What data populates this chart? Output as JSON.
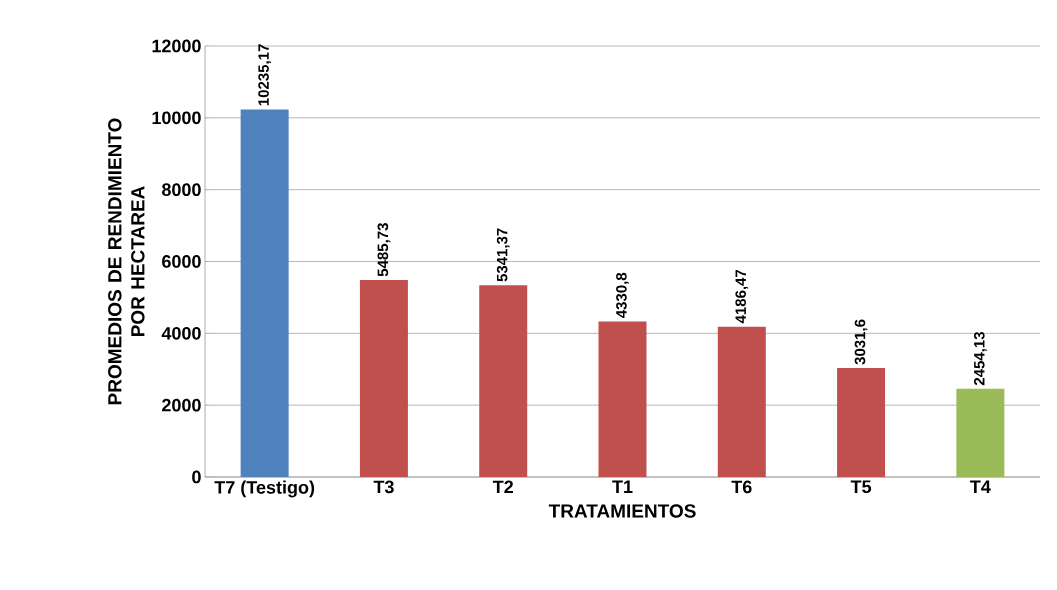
{
  "chart_data": {
    "type": "bar",
    "xlabel": "TRATAMIENTOS",
    "ylabel": "PROMEDIOS DE RENDIMIENTO POR HECTAREA",
    "categories": [
      "T7 (Testigo)",
      "T3",
      "T2",
      "T1",
      "T6",
      "T5",
      "T4"
    ],
    "values": [
      10235.17,
      5485.73,
      5341.37,
      4330.8,
      4186.47,
      3031.6,
      2454.13
    ],
    "value_labels": [
      "10235,17",
      "5485,73",
      "5341,37",
      "4330,8",
      "4186,47",
      "3031,6",
      "2454,13"
    ],
    "colors": [
      "#4f81bd",
      "#c0504d",
      "#c0504d",
      "#c0504d",
      "#c0504d",
      "#c0504d",
      "#9bbb59"
    ],
    "ylim": [
      0,
      12000
    ],
    "yticks": [
      0,
      2000,
      4000,
      6000,
      8000,
      10000,
      12000
    ],
    "grid": "y"
  }
}
